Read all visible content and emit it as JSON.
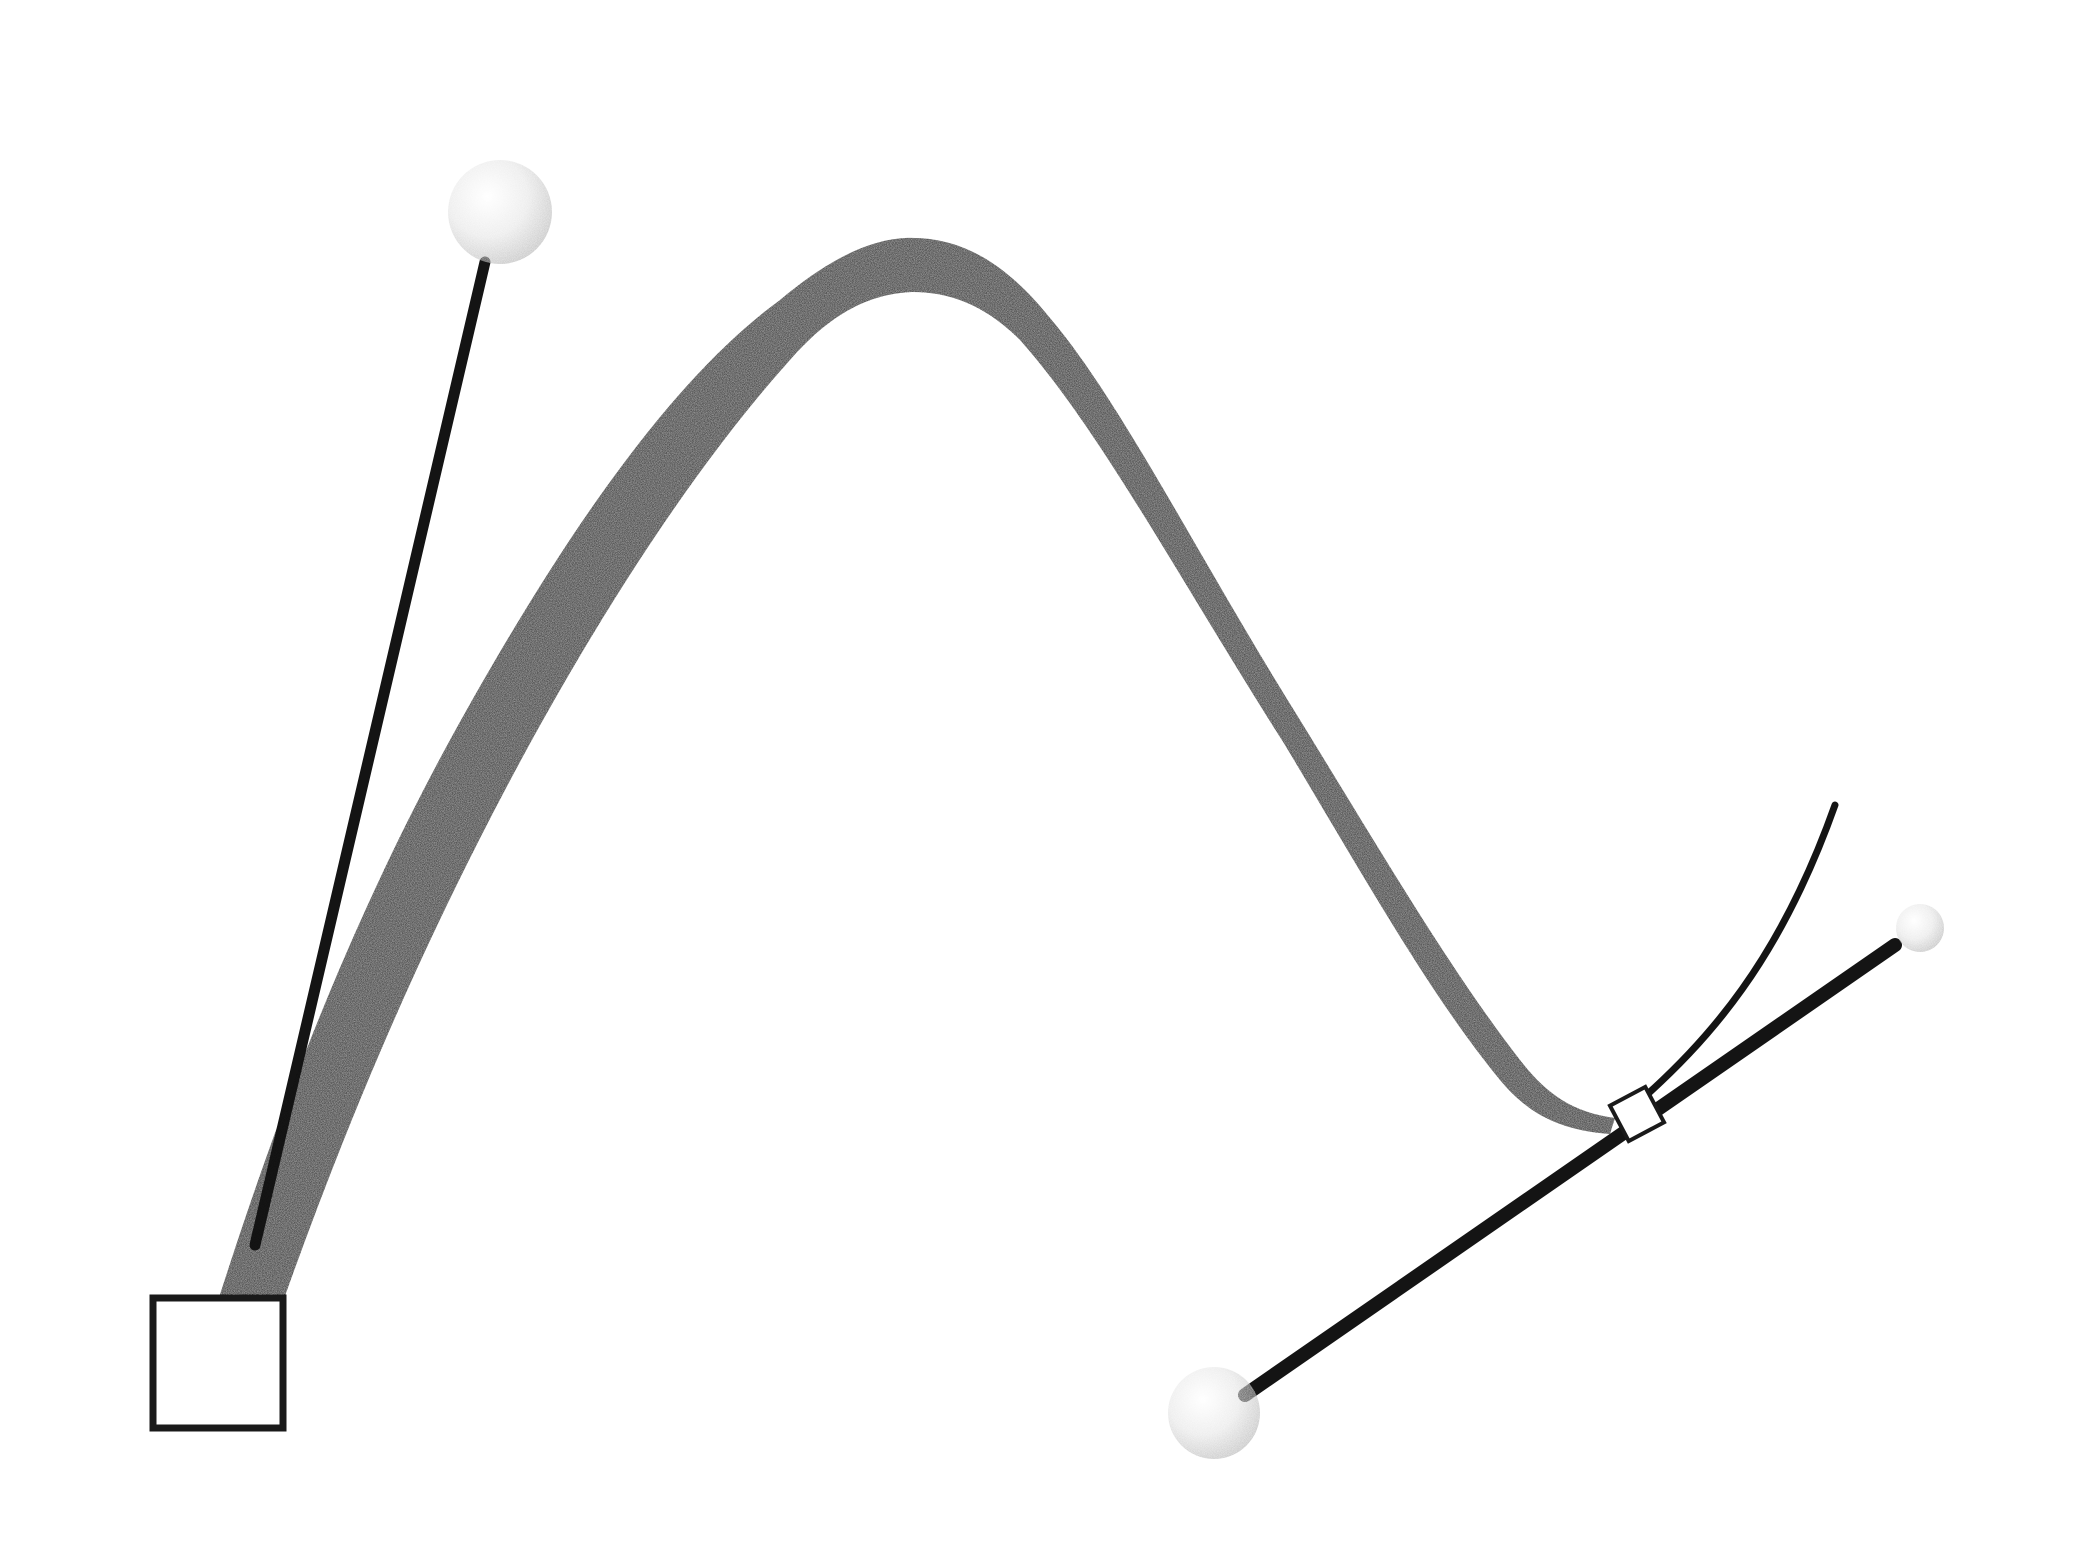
{
  "illustration": {
    "subject": "bezier-curve-with-control-handles",
    "colors": {
      "background": "#ffffff",
      "stroke": "#141414",
      "handle_line": "#141414",
      "anchor_fill": "#ffffff",
      "anchor_border": "#1a1a1a",
      "knob_light": "#ffffff",
      "knob_mid": "#e6e6e6",
      "knob_dark": "#b5b5b5"
    },
    "anchors": [
      {
        "name": "start-anchor",
        "shape": "square"
      },
      {
        "name": "end-anchor",
        "shape": "square"
      }
    ],
    "handles": [
      {
        "name": "start-handle",
        "knob_icon": "sphere-knob"
      },
      {
        "name": "end-handle-in",
        "knob_icon": "sphere-knob"
      },
      {
        "name": "end-handle-out",
        "knob_icon": "sphere-knob"
      }
    ]
  }
}
